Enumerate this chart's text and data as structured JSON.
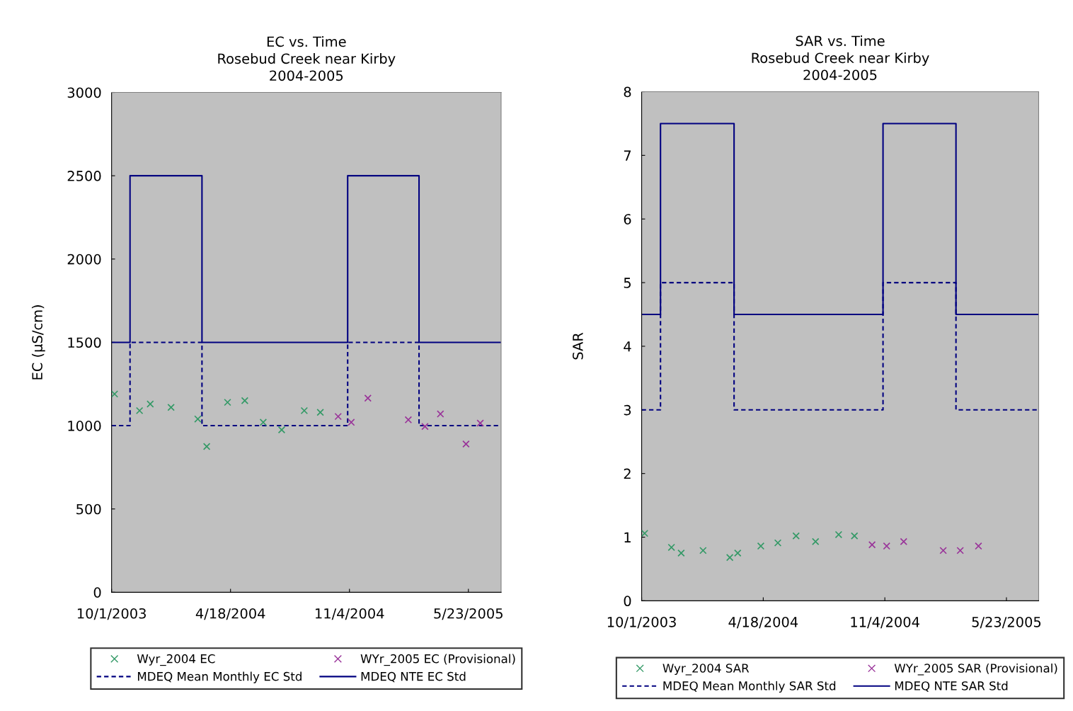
{
  "chart_data": [
    {
      "type": "scatter",
      "title": "EC vs. Time\nRosebud Creek near Kirby\n2004-2005",
      "ylabel": "EC (µS/cm)",
      "xlim": [
        "2003-10-01",
        "2005-07-17"
      ],
      "xticks": [
        {
          "value": "2003-10-01",
          "label": "10/1/2003"
        },
        {
          "value": "2004-04-18",
          "label": "4/18/2004"
        },
        {
          "value": "2004-11-04",
          "label": "11/4/2004"
        },
        {
          "value": "2005-05-23",
          "label": "5/23/2005"
        }
      ],
      "ylim": [
        0,
        3000
      ],
      "yticks": [
        0,
        500,
        1000,
        1500,
        2000,
        2500,
        3000
      ],
      "grid": false,
      "legend": "bottom",
      "series": [
        {
          "name": "Wyr_2004 EC",
          "marker": "cross",
          "color": "#339966",
          "x": [
            "2003-10-06",
            "2003-11-17",
            "2003-12-05",
            "2004-01-09",
            "2004-02-23",
            "2004-03-09",
            "2004-04-13",
            "2004-05-12",
            "2004-06-12",
            "2004-07-13",
            "2004-08-20",
            "2004-09-16"
          ],
          "values": [
            1190,
            1090,
            1130,
            1110,
            1040,
            875,
            1140,
            1150,
            1020,
            975,
            1090,
            1080
          ]
        },
        {
          "name": "WYr_2005 EC (Provisional)",
          "marker": "cross",
          "color": "#993399",
          "x": [
            "2004-10-16",
            "2004-11-07",
            "2004-12-05",
            "2005-02-11",
            "2005-03-11",
            "2005-04-06",
            "2005-05-19",
            "2005-06-12"
          ],
          "values": [
            1055,
            1020,
            1165,
            1035,
            995,
            1070,
            890,
            1015
          ]
        },
        {
          "name": "MDEQ Mean Monthly EC Std",
          "type": "step",
          "line_style": "dashed",
          "color": "#000080",
          "x": [
            "2003-10-01",
            "2003-11-01",
            "2004-03-01",
            "2004-11-01",
            "2005-03-01",
            "2005-07-17"
          ],
          "values": [
            1000,
            1500,
            1000,
            1500,
            1000,
            1000
          ]
        },
        {
          "name": "MDEQ NTE EC Std",
          "type": "step",
          "line_style": "solid",
          "color": "#000080",
          "x": [
            "2003-10-01",
            "2003-11-01",
            "2004-03-01",
            "2004-11-01",
            "2005-03-01",
            "2005-07-17"
          ],
          "values": [
            1500,
            2500,
            1500,
            2500,
            1500,
            1500
          ]
        }
      ]
    },
    {
      "type": "scatter",
      "title": "SAR vs. Time\nRosebud Creek near Kirby\n2004-2005",
      "ylabel": "SAR",
      "xlim": [
        "2003-10-01",
        "2005-07-15"
      ],
      "xticks": [
        {
          "value": "2003-10-01",
          "label": "10/1/2003"
        },
        {
          "value": "2004-04-18",
          "label": "4/18/2004"
        },
        {
          "value": "2004-11-04",
          "label": "11/4/2004"
        },
        {
          "value": "2005-05-23",
          "label": "5/23/2005"
        }
      ],
      "ylim": [
        0,
        8
      ],
      "yticks": [
        0,
        1,
        2,
        3,
        4,
        5,
        6,
        7,
        8
      ],
      "grid": false,
      "legend": "bottom",
      "series": [
        {
          "name": "Wyr_2004 SAR",
          "marker": "cross",
          "color": "#339966",
          "x": [
            "2003-10-06",
            "2003-11-19",
            "2003-12-05",
            "2004-01-10",
            "2004-02-23",
            "2004-03-07",
            "2004-04-14",
            "2004-05-12",
            "2004-06-11",
            "2004-07-13",
            "2004-08-20",
            "2004-09-15"
          ],
          "values": [
            1.06,
            0.84,
            0.75,
            0.79,
            0.68,
            0.75,
            0.86,
            0.91,
            1.02,
            0.93,
            1.04,
            1.02
          ]
        },
        {
          "name": "WYr_2005 SAR (Provisional)",
          "marker": "cross",
          "color": "#993399",
          "x": [
            "2004-10-14",
            "2004-11-07",
            "2004-12-05",
            "2005-02-08",
            "2005-03-08",
            "2005-04-07"
          ],
          "values": [
            0.88,
            0.86,
            0.93,
            0.79,
            0.79,
            0.86
          ]
        },
        {
          "name": "MDEQ Mean Monthly SAR Std",
          "type": "step",
          "line_style": "dashed",
          "color": "#000080",
          "x": [
            "2003-10-01",
            "2003-11-01",
            "2004-03-01",
            "2004-11-01",
            "2005-03-01",
            "2005-07-15"
          ],
          "values": [
            3,
            5,
            3,
            5,
            3,
            3
          ]
        },
        {
          "name": "MDEQ NTE SAR Std",
          "type": "step",
          "line_style": "solid",
          "color": "#000080",
          "x": [
            "2003-10-01",
            "2003-11-01",
            "2004-03-01",
            "2004-11-01",
            "2005-03-01",
            "2005-07-15"
          ],
          "values": [
            4.5,
            7.5,
            4.5,
            7.5,
            4.5,
            4.5
          ]
        }
      ]
    }
  ]
}
